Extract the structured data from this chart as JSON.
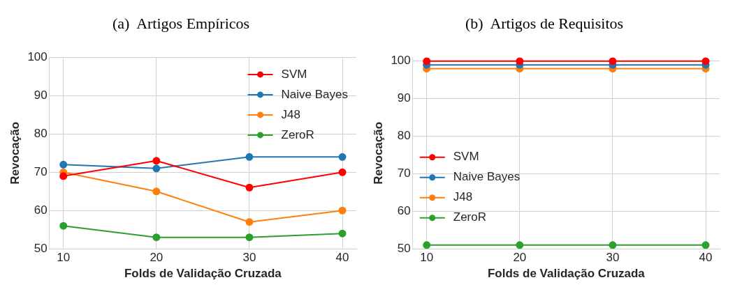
{
  "chart_data": [
    {
      "type": "line",
      "title": "(a)  Artigos Empíricos",
      "xlabel": "Folds de Validação Cruzada",
      "ylabel": "Revocação",
      "x": [
        10,
        20,
        30,
        40
      ],
      "xlim": [
        8.5,
        41.5
      ],
      "xticks": [
        10,
        20,
        30,
        40
      ],
      "ylim": [
        50,
        100
      ],
      "yticks": [
        50,
        60,
        70,
        80,
        90,
        100
      ],
      "grid": true,
      "legend": "top right",
      "marker": "circle",
      "line_style": "solid",
      "series": [
        {
          "name": "SVM",
          "color": "#ff0000",
          "values": [
            69,
            73,
            66,
            70
          ]
        },
        {
          "name": "Naive Bayes",
          "color": "#1f77b4",
          "values": [
            72,
            71,
            74,
            74
          ]
        },
        {
          "name": "J48",
          "color": "#ff7f0e",
          "values": [
            70,
            65,
            57,
            60
          ]
        },
        {
          "name": "ZeroR",
          "color": "#2ca02c",
          "values": [
            56,
            53,
            53,
            54
          ]
        }
      ]
    },
    {
      "type": "line",
      "title": "(b)  Artigos de Requisitos",
      "xlabel": "Folds de Validação Cruzada",
      "ylabel": "Revocação",
      "x": [
        10,
        20,
        30,
        40
      ],
      "xlim": [
        8.5,
        41.5
      ],
      "xticks": [
        10,
        20,
        30,
        40
      ],
      "ylim": [
        50,
        101
      ],
      "yticks": [
        50,
        60,
        70,
        80,
        90,
        100
      ],
      "grid": true,
      "legend": "left",
      "marker": "circle",
      "line_style": "solid",
      "series": [
        {
          "name": "SVM",
          "color": "#ff0000",
          "values": [
            100,
            100,
            100,
            100
          ]
        },
        {
          "name": "Naive Bayes",
          "color": "#1f77b4",
          "values": [
            99,
            99,
            99,
            99
          ]
        },
        {
          "name": "J48",
          "color": "#ff7f0e",
          "values": [
            98,
            98,
            98,
            98
          ]
        },
        {
          "name": "ZeroR",
          "color": "#2ca02c",
          "values": [
            51,
            51,
            51,
            51
          ]
        }
      ]
    }
  ]
}
